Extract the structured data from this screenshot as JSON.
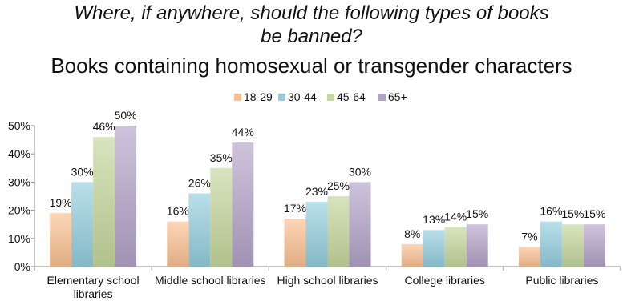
{
  "title_line1": "Where, if anywhere, should the following types of books",
  "title_line2": "be banned?",
  "subtitle": "Books containing homosexual or transgender characters",
  "chart_data": {
    "type": "bar",
    "categories": [
      [
        "Elementary school",
        "libraries"
      ],
      [
        "Middle school libraries"
      ],
      [
        "High school libraries"
      ],
      [
        "College libraries"
      ],
      [
        "Public libraries"
      ]
    ],
    "series": [
      {
        "name": "18-29",
        "values": [
          19,
          16,
          17,
          8,
          7
        ],
        "color": "#fac090"
      },
      {
        "name": "30-44",
        "values": [
          30,
          26,
          23,
          13,
          16
        ],
        "color": "#93cddd"
      },
      {
        "name": "45-64",
        "values": [
          46,
          35,
          25,
          14,
          15
        ],
        "color": "#c3d69b"
      },
      {
        "name": "65+",
        "values": [
          50,
          44,
          30,
          15,
          15
        ],
        "color": "#b3a2c7"
      }
    ],
    "value_suffix": "%",
    "yticks": [
      "0%",
      "10%",
      "20%",
      "30%",
      "40%",
      "50%"
    ],
    "ylim": [
      0,
      50
    ],
    "legend": "top",
    "grid": false
  }
}
